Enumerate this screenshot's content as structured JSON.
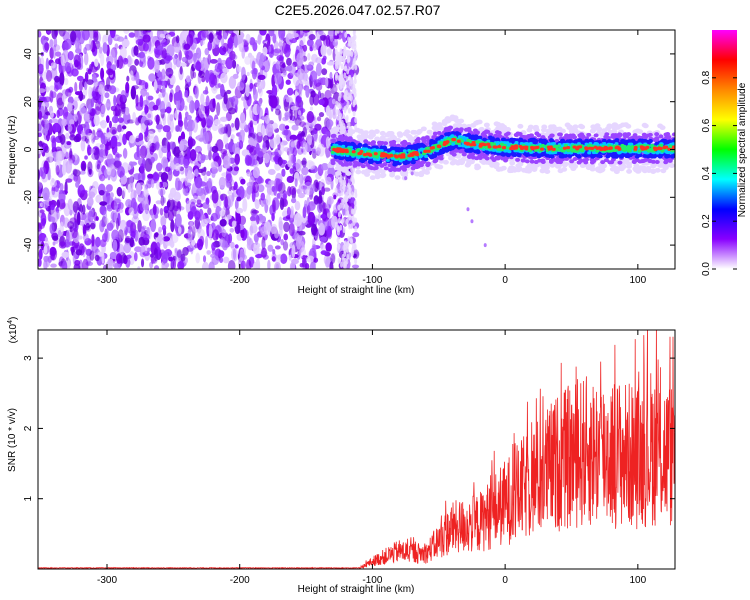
{
  "title": "C2E5.2026.047.02.57.R07",
  "chart_data": [
    {
      "type": "heatmap",
      "xlabel": "Height of straight line (km)",
      "ylabel": "Frequency (Hz)",
      "xlim": [
        -352,
        128
      ],
      "ylim": [
        -50,
        50
      ],
      "xticks": [
        -300,
        -200,
        -100,
        0,
        100
      ],
      "yticks": [
        -40,
        -20,
        0,
        20,
        40
      ],
      "colorbar": {
        "label": "Normalized spectral amplitude",
        "range": [
          0,
          1
        ],
        "ticks": [
          "0.0",
          "0.2",
          "0.4",
          "0.6",
          "0.8"
        ],
        "colors": [
          "#ffffff",
          "#8800ff",
          "#0000ff",
          "#00ffff",
          "#00ff00",
          "#ffff00",
          "#ff8800",
          "#ff0000",
          "#ff00ff"
        ]
      },
      "features": {
        "noise_region_x": [
          -352,
          -120
        ],
        "signal_start_x": -130,
        "signal_freq_trace": [
          {
            "x": -130,
            "y": 0
          },
          {
            "x": -100,
            "y": -2
          },
          {
            "x": -80,
            "y": -3
          },
          {
            "x": -60,
            "y": -1
          },
          {
            "x": -40,
            "y": 4
          },
          {
            "x": -20,
            "y": 2
          },
          {
            "x": 0,
            "y": 1
          },
          {
            "x": 40,
            "y": 0.5
          },
          {
            "x": 80,
            "y": 0.5
          },
          {
            "x": 128,
            "y": 0.5
          }
        ]
      }
    },
    {
      "type": "line",
      "xlabel": "Height of straight line (km)",
      "ylabel": "SNR (10 * v/v)",
      "yscale_label": "(x10",
      "yscale_exponent": "4",
      "xlim": [
        -352,
        128
      ],
      "ylim": [
        0,
        3.4
      ],
      "xticks": [
        -300,
        -200,
        -100,
        0,
        100
      ],
      "yticks": [
        1,
        2,
        3
      ],
      "series_color": "#ee2222",
      "envelope": [
        {
          "x": -352,
          "y": 0.01
        },
        {
          "x": -110,
          "y": 0.01
        },
        {
          "x": -100,
          "y": 0.15
        },
        {
          "x": -80,
          "y": 0.35
        },
        {
          "x": -60,
          "y": 0.3
        },
        {
          "x": -40,
          "y": 0.8
        },
        {
          "x": -20,
          "y": 0.9
        },
        {
          "x": 0,
          "y": 1.3
        },
        {
          "x": 20,
          "y": 1.7
        },
        {
          "x": 40,
          "y": 2.1
        },
        {
          "x": 60,
          "y": 2.3
        },
        {
          "x": 80,
          "y": 2.3
        },
        {
          "x": 100,
          "y": 2.2
        },
        {
          "x": 110,
          "y": 2.4
        },
        {
          "x": 128,
          "y": 2.2
        }
      ]
    }
  ]
}
